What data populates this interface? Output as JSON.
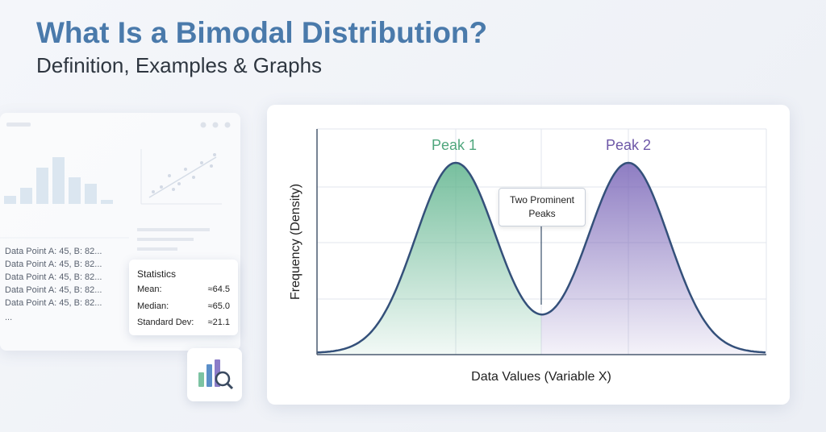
{
  "header": {
    "title": "What Is a Bimodal Distribution?",
    "subtitle": "Definition, Examples & Graphs"
  },
  "data_panel": {
    "rows": [
      "Data Point A: 45, B: 82...",
      "Data Point A: 45, B: 82...",
      "Data Point A: 45, B: 82...",
      "Data Point A: 45, B: 82...",
      "Data Point A: 45, B: 82..."
    ],
    "ellipsis": "..."
  },
  "statistics": {
    "title": "Statistics",
    "rows": [
      [
        "Mean:",
        "≈64.5"
      ],
      [
        "Median:",
        "≈65.0"
      ],
      [
        "Standard Dev:",
        "≈21.1"
      ]
    ]
  },
  "chart": {
    "peak_labels": [
      "Peak 1",
      "Peak 2"
    ],
    "annotation": "Two Prominent Peaks",
    "y_label": "Frequency (Density)",
    "x_label": "Data Values (Variable X)"
  }
}
